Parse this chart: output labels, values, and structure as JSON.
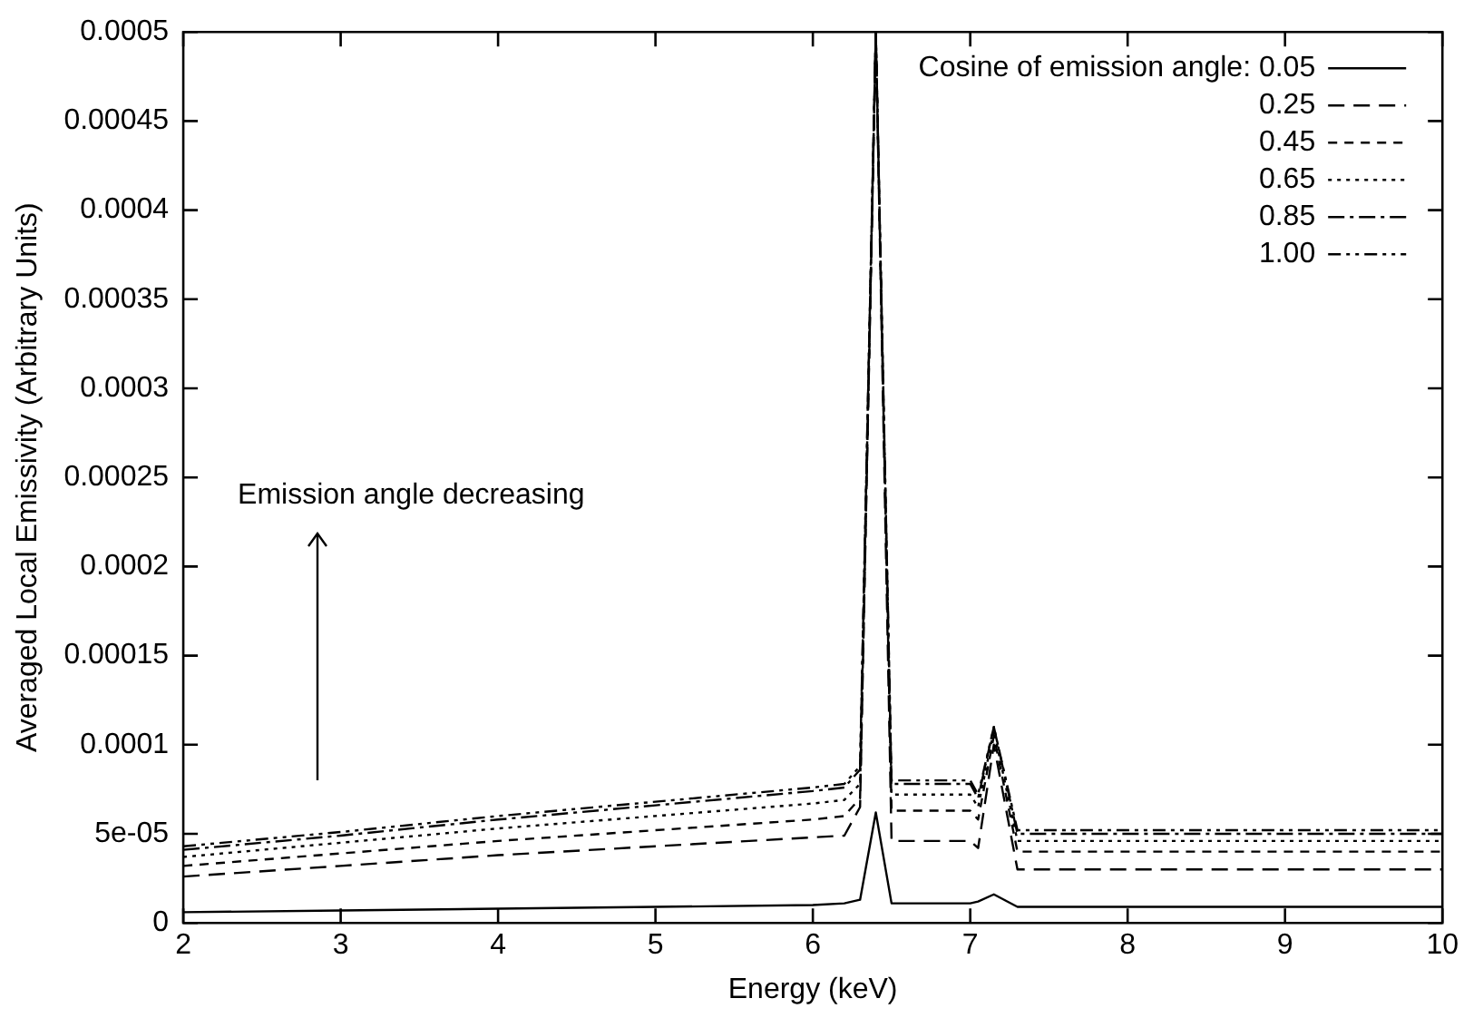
{
  "chart_data": {
    "type": "line",
    "xlabel": "Energy (keV)",
    "ylabel": "Averaged Local Emissivity (Arbitrary Units)",
    "legend_title": "Cosine of emission angle:",
    "legend": "top right",
    "grid": false,
    "marker": "none",
    "x": [
      2,
      3,
      4,
      5,
      6,
      6.2,
      6.3,
      6.4,
      6.5,
      7.0,
      7.05,
      7.15,
      7.3,
      10
    ],
    "xlim": [
      2,
      10
    ],
    "xticks": [
      2,
      3,
      4,
      5,
      6,
      7,
      8,
      9,
      10
    ],
    "ylim": [
      0,
      0.0005
    ],
    "yticks": [
      0,
      {
        "value": 5e-05,
        "label": "5e-05"
      },
      0.0001,
      0.00015,
      0.0002,
      0.00025,
      0.0003,
      0.00035,
      0.0004,
      0.00045,
      0.0005
    ],
    "series": [
      {
        "name": "0.05",
        "color": "#000000",
        "line_style": "solid",
        "values": [
          6e-06,
          7e-06,
          8e-06,
          9e-06,
          1e-05,
          1.1e-05,
          1.3e-05,
          6.2e-05,
          1.1e-05,
          1.1e-05,
          1.2e-05,
          1.6e-05,
          9e-06,
          9e-06
        ]
      },
      {
        "name": "0.25",
        "color": "#000000",
        "line_style": "dashed",
        "values": [
          2.6e-05,
          3.2e-05,
          3.8e-05,
          4.3e-05,
          4.8e-05,
          4.9e-05,
          6.5e-05,
          0.0005,
          4.6e-05,
          4.6e-05,
          4.2e-05,
          0.0001,
          3e-05,
          3e-05
        ]
      },
      {
        "name": "0.45",
        "color": "#000000",
        "line_style": "dashed",
        "values": [
          3.2e-05,
          3.9e-05,
          4.6e-05,
          5.2e-05,
          5.8e-05,
          6e-05,
          7e-05,
          0.0005,
          6.3e-05,
          6.3e-05,
          5.8e-05,
          0.000105,
          4e-05,
          4e-05
        ]
      },
      {
        "name": "0.65",
        "color": "#000000",
        "line_style": "dotted",
        "values": [
          3.7e-05,
          4.5e-05,
          5.3e-05,
          6e-05,
          6.7e-05,
          6.9e-05,
          7.8e-05,
          0.0005,
          7.2e-05,
          7.2e-05,
          6.5e-05,
          0.000108,
          4.6e-05,
          4.6e-05
        ]
      },
      {
        "name": "0.85",
        "color": "#000000",
        "line_style": "dashed",
        "values": [
          4.1e-05,
          4.9e-05,
          5.8e-05,
          6.6e-05,
          7.4e-05,
          7.6e-05,
          8.6e-05,
          0.0005,
          7.8e-05,
          7.8e-05,
          7e-05,
          0.00011,
          5e-05,
          5e-05
        ]
      },
      {
        "name": "1.00",
        "color": "#000000",
        "line_style": "dashed",
        "values": [
          4.3e-05,
          5.1e-05,
          6e-05,
          6.8e-05,
          7.6e-05,
          7.8e-05,
          8.8e-05,
          0.0005,
          8e-05,
          8e-05,
          7.2e-05,
          0.00011,
          5.2e-05,
          5.2e-05
        ]
      }
    ],
    "annotations": [
      "Emission angle decreasing"
    ]
  }
}
